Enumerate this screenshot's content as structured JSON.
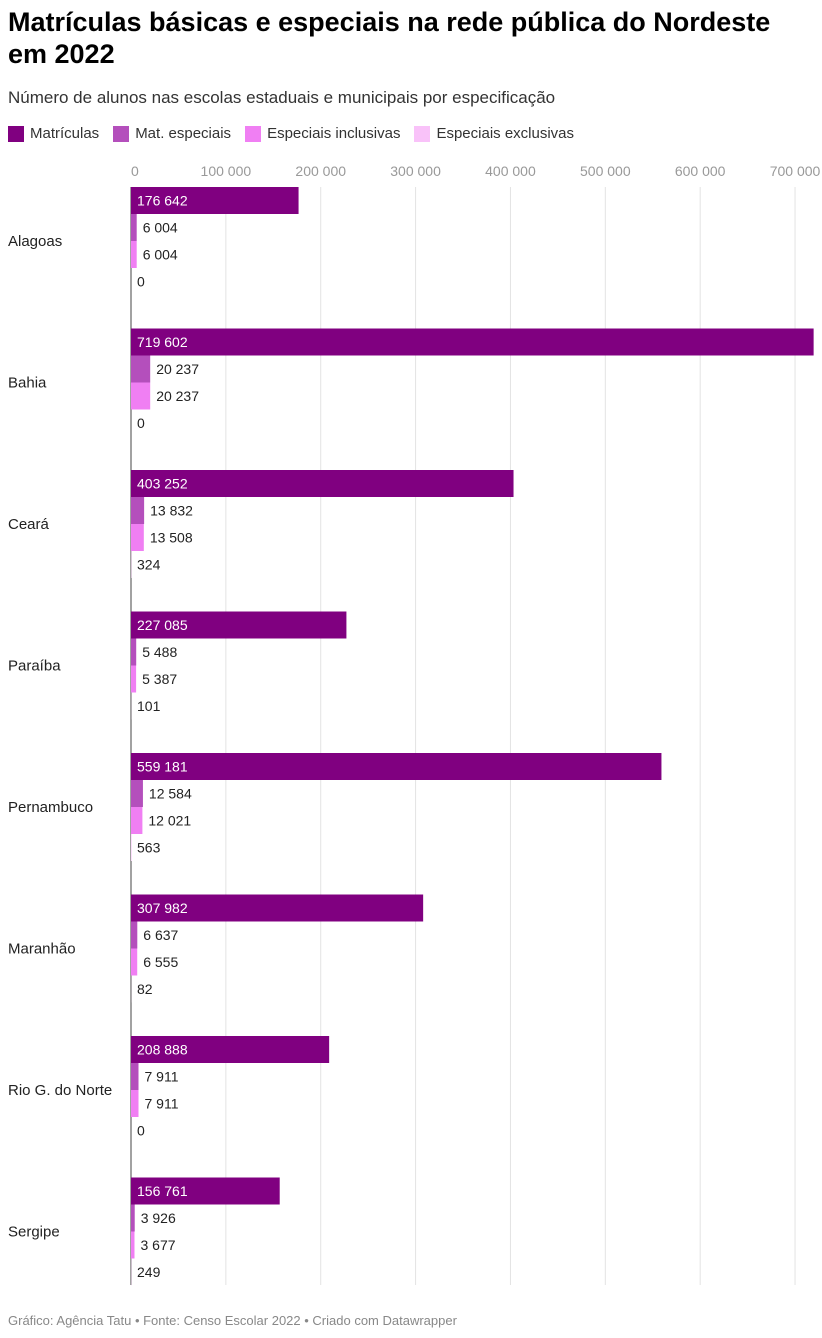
{
  "chart_data": {
    "type": "bar",
    "orientation": "horizontal",
    "title": "Matrículas básicas e especiais na rede pública do Nordeste em 2022",
    "subtitle": "Número de alunos nas escolas estaduais e municipais por especificação",
    "categories": [
      "Alagoas",
      "Bahia",
      "Ceará",
      "Paraíba",
      "Pernambuco",
      "Maranhão",
      "Rio G. do Norte",
      "Sergipe"
    ],
    "series": [
      {
        "name": "Matrículas",
        "color": "#800080",
        "values": [
          176642,
          719602,
          403252,
          227085,
          559181,
          307982,
          208888,
          156761
        ],
        "labels": [
          "176 642",
          "719 602",
          "403 252",
          "227 085",
          "559 181",
          "307 982",
          "208 888",
          "156 761"
        ]
      },
      {
        "name": "Mat. especiais",
        "color": "#b44fbc",
        "values": [
          6004,
          20237,
          13832,
          5488,
          12584,
          6637,
          7911,
          3926
        ],
        "labels": [
          "6 004",
          "20 237",
          "13 832",
          "5 488",
          "12 584",
          "6 637",
          "7 911",
          "3 926"
        ]
      },
      {
        "name": "Especiais inclusivas",
        "color": "#f07ff3",
        "values": [
          6004,
          20237,
          13508,
          5387,
          12021,
          6555,
          7911,
          3677
        ],
        "labels": [
          "6 004",
          "20 237",
          "13 508",
          "5 387",
          "12 021",
          "6 555",
          "7 911",
          "3 677"
        ]
      },
      {
        "name": "Especiais exclusivas",
        "color": "#f9c2f9",
        "values": [
          0,
          0,
          324,
          101,
          563,
          82,
          0,
          249
        ],
        "labels": [
          "0",
          "0",
          "324",
          "101",
          "563",
          "82",
          "0",
          "249"
        ]
      }
    ],
    "xlim": [
      0,
      720000
    ],
    "xticks": [
      0,
      100000,
      200000,
      300000,
      400000,
      500000,
      600000,
      700000
    ],
    "xtick_labels": [
      "0",
      "100 000",
      "200 000",
      "300 000",
      "400 000",
      "500 000",
      "600 000",
      "700 000"
    ],
    "grid": true,
    "legend_position": "top-left"
  },
  "footer": "Gráfico: Agência Tatu • Fonte: Censo Escolar 2022 • Criado com Datawrapper"
}
